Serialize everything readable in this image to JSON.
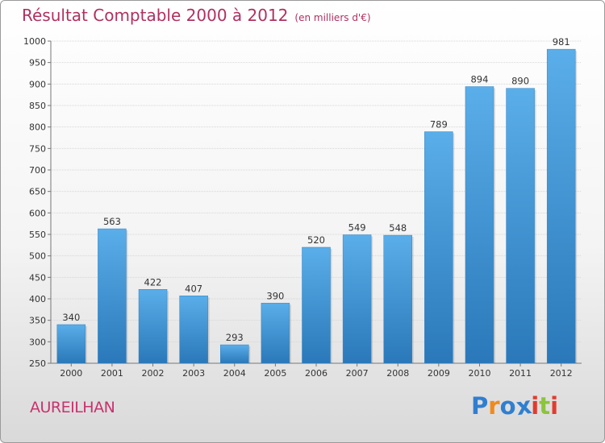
{
  "chart_data": {
    "type": "bar",
    "title": "Résultat Comptable 2000 à 2012",
    "subtitle": "(en milliers d'€)",
    "categories": [
      "2000",
      "2001",
      "2002",
      "2003",
      "2004",
      "2005",
      "2006",
      "2007",
      "2008",
      "2009",
      "2010",
      "2011",
      "2012"
    ],
    "values": [
      340,
      563,
      422,
      407,
      293,
      390,
      520,
      549,
      548,
      789,
      894,
      890,
      981
    ],
    "ylim": [
      250,
      1000
    ],
    "yticks": [
      250,
      300,
      350,
      400,
      450,
      500,
      550,
      600,
      650,
      700,
      750,
      800,
      850,
      900,
      950,
      1000
    ],
    "xlabel": "",
    "ylabel": "",
    "bar_color": "#3d93d6"
  },
  "location": "AUREILHAN",
  "logo": {
    "letters": [
      "P",
      "r",
      "o",
      "x",
      "i",
      "t",
      "i"
    ],
    "colors": [
      "#2f7fd0",
      "#f08a1c",
      "#2f7fd0",
      "#2f7fd0",
      "#e23b2e",
      "#8cc43c",
      "#e23b2e"
    ]
  }
}
